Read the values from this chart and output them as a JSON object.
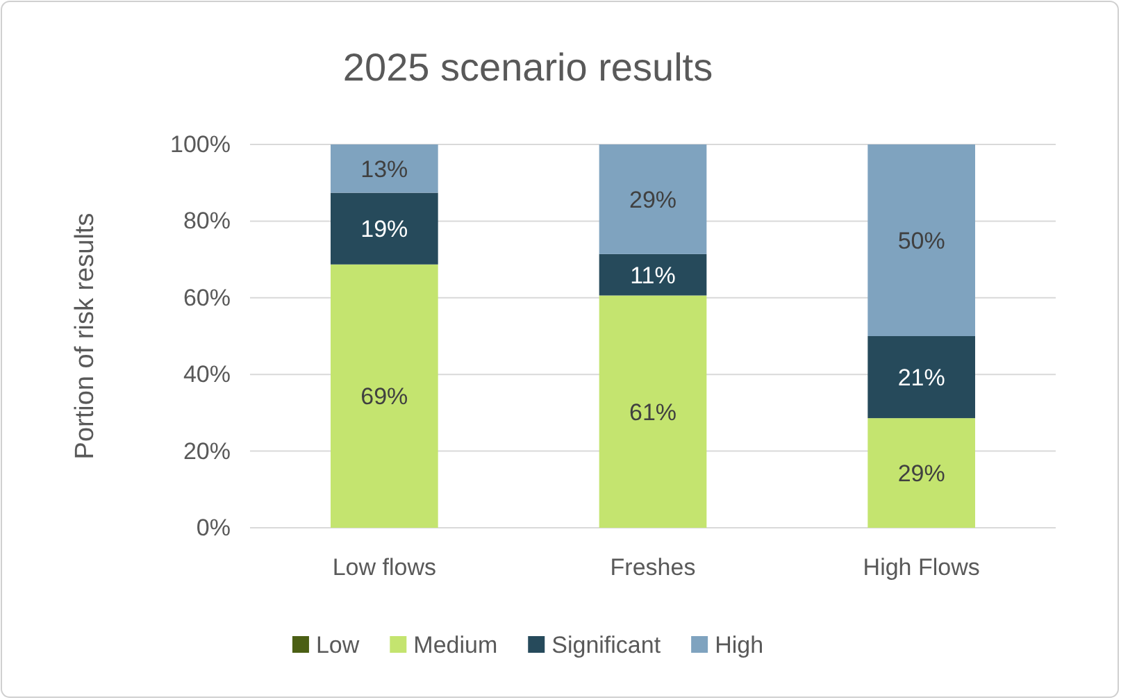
{
  "chart_data": {
    "type": "bar",
    "title": "2025 scenario results",
    "ylabel": "Portion of risk results",
    "categories": [
      "Low flows",
      "Freshes",
      "High Flows"
    ],
    "stacked": true,
    "legend": "bottom",
    "grid": "y",
    "ylim": [
      0,
      100
    ],
    "yticks": [
      {
        "value": 0,
        "label": "0%"
      },
      {
        "value": 20,
        "label": "20%"
      },
      {
        "value": 40,
        "label": "40%"
      },
      {
        "value": 60,
        "label": "60%"
      },
      {
        "value": 80,
        "label": "80%"
      },
      {
        "value": 100,
        "label": "100%"
      }
    ],
    "series": [
      {
        "name": "Low",
        "color": "#4b5f14",
        "values": [
          0,
          0,
          0
        ],
        "value_labels": [
          null,
          null,
          null
        ]
      },
      {
        "name": "Medium",
        "color": "#c4e46f",
        "values": [
          68.7,
          60.6,
          28.6
        ],
        "value_labels": [
          "69%",
          "61%",
          "29%"
        ]
      },
      {
        "name": "Significant",
        "color": "#264a5b",
        "values": [
          18.7,
          10.8,
          21.4
        ],
        "value_labels": [
          "19%",
          "11%",
          "21%"
        ]
      },
      {
        "name": "High",
        "color": "#7fa3bf",
        "values": [
          12.6,
          28.6,
          50.0
        ],
        "value_labels": [
          "13%",
          "29%",
          "50%"
        ]
      }
    ]
  }
}
